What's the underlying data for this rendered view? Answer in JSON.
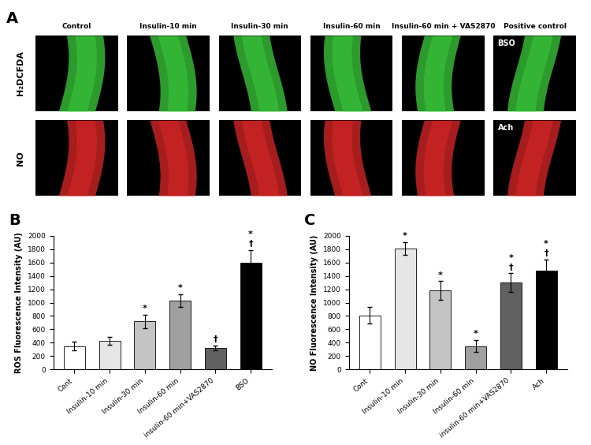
{
  "image_panel": {
    "title": "A",
    "columns": [
      "Control",
      "Insulin-10 min",
      "Insulin-30 min",
      "Insulin-60 min",
      "Insulin-60 min + VAS2870",
      "Positive control"
    ],
    "rows": [
      {
        "label": "H₂DCFDA",
        "color": "#3ccf3c",
        "inset_labels": [
          null,
          null,
          null,
          null,
          null,
          "BSO"
        ]
      },
      {
        "label": "NO",
        "color": "#e02828",
        "inset_labels": [
          null,
          null,
          null,
          null,
          null,
          "Ach"
        ]
      }
    ]
  },
  "chart_data": [
    {
      "type": "bar",
      "title": "B",
      "y_label": "ROS Fluorescence Intensity (AU)",
      "categories": [
        "Cont",
        "Insulin-10 min",
        "Insulin-30 min",
        "Insulin-60 min",
        "insulin-60 min+VAS2870",
        "BSO"
      ],
      "values": [
        350,
        430,
        720,
        1030,
        320,
        1600
      ],
      "errors": [
        60,
        60,
        100,
        100,
        40,
        190
      ],
      "significance": [
        [],
        [],
        [
          "*"
        ],
        [
          "*"
        ],
        [
          "†"
        ],
        [
          "*",
          "†"
        ]
      ],
      "colors": [
        "#ffffff",
        "#e6e6e6",
        "#c4c4c4",
        "#a0a0a0",
        "#606060",
        "#000000"
      ],
      "ylim": [
        0,
        2000
      ],
      "yticks": [
        0,
        200,
        400,
        600,
        800,
        1000,
        1200,
        1400,
        1600,
        1800,
        2000
      ]
    },
    {
      "type": "bar",
      "title": "C",
      "y_label": "NO Fluorescence Intensity (AU)",
      "categories": [
        "Cont",
        "Insulin-10 min",
        "Insulin-30 min",
        "Insulin-60 min",
        "insulin-60 min+VAS2870",
        "Ach"
      ],
      "values": [
        810,
        1810,
        1180,
        350,
        1300,
        1480
      ],
      "errors": [
        120,
        100,
        140,
        90,
        140,
        170
      ],
      "significance": [
        [],
        [
          "*"
        ],
        [
          "*"
        ],
        [
          "*"
        ],
        [
          "*",
          "†"
        ],
        [
          "*",
          "†"
        ]
      ],
      "colors": [
        "#ffffff",
        "#e6e6e6",
        "#c4c4c4",
        "#a0a0a0",
        "#606060",
        "#000000"
      ],
      "ylim": [
        0,
        2000
      ],
      "yticks": [
        0,
        200,
        400,
        600,
        800,
        1000,
        1200,
        1400,
        1600,
        1800,
        2000
      ]
    }
  ]
}
